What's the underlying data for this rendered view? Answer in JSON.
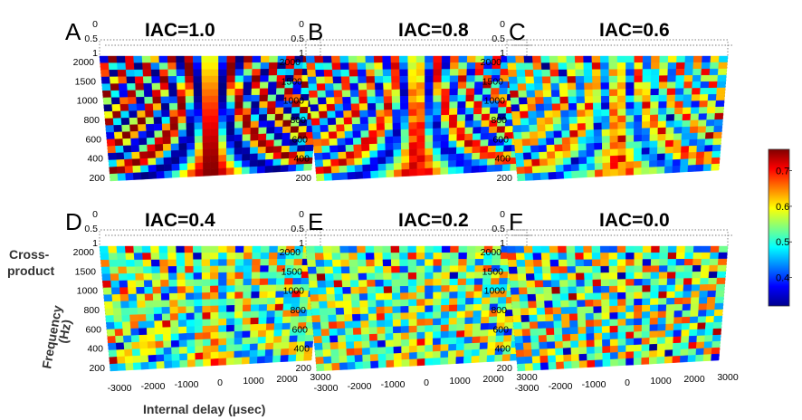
{
  "chart_data": [
    {
      "type": "heatmap",
      "letter": "A",
      "title": "IAC=1.0",
      "iac": 1.0
    },
    {
      "type": "heatmap",
      "letter": "B",
      "title": "IAC=0.8",
      "iac": 0.8
    },
    {
      "type": "heatmap",
      "letter": "C",
      "title": "IAC=0.6",
      "iac": 0.6
    },
    {
      "type": "heatmap",
      "letter": "D",
      "title": "IAC=0.4",
      "iac": 0.4
    },
    {
      "type": "heatmap",
      "letter": "E",
      "title": "IAC=0.2",
      "iac": 0.2
    },
    {
      "type": "heatmap",
      "letter": "F",
      "title": "IAC=0.0",
      "iac": 0.0
    }
  ],
  "axes": {
    "x_label": "Internal delay (μsec)",
    "x_ticks": [
      "-3000",
      "-2000",
      "-1000",
      "0",
      "1000",
      "2000",
      "3000"
    ],
    "y_label_line1": "Frequency",
    "y_label_line2": "(Hz)",
    "y_ticks": [
      "200",
      "400",
      "600",
      "800",
      "1000",
      "1500",
      "2000"
    ],
    "z_label_line1": "Cross-",
    "z_label_line2": "product",
    "z_ticks": [
      "0",
      "0.5",
      "1"
    ]
  },
  "colorbar": {
    "ticks": [
      "0.4",
      "0.5",
      "0.6",
      "0.7"
    ],
    "range": [
      0.32,
      0.76
    ],
    "colormap": [
      "#00008f",
      "#0000ff",
      "#00ffff",
      "#ffff00",
      "#ff0000",
      "#800000"
    ]
  }
}
